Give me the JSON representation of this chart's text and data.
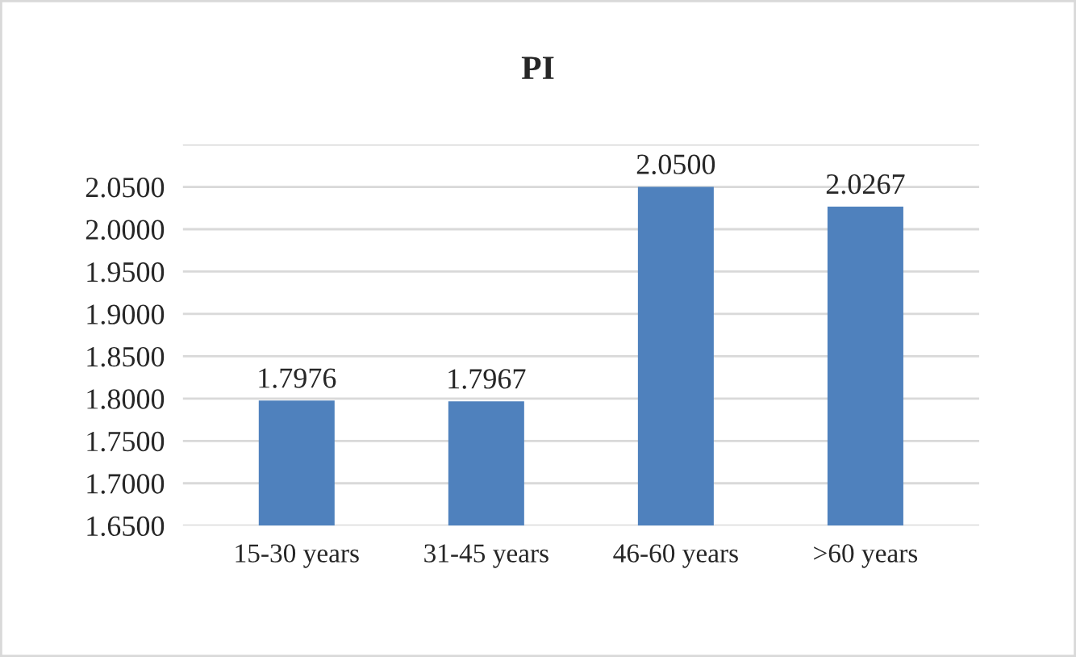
{
  "chart_data": {
    "type": "bar",
    "title": "PI",
    "categories": [
      "15-30 years",
      "31-45 years",
      "46-60 years",
      ">60 years"
    ],
    "values": [
      1.7976,
      1.7967,
      2.05,
      2.0267
    ],
    "value_labels": [
      "1.7976",
      "1.7967",
      "2.0500",
      "2.0267"
    ],
    "color": "#4f81bd",
    "ylim": [
      1.65,
      2.1
    ],
    "yticks": [
      {
        "value": 1.65,
        "label": "1.6500"
      },
      {
        "value": 1.7,
        "label": "1.7000"
      },
      {
        "value": 1.75,
        "label": "1.7500"
      },
      {
        "value": 1.8,
        "label": "1.8000"
      },
      {
        "value": 1.85,
        "label": "1.8500"
      },
      {
        "value": 1.9,
        "label": "1.9000"
      },
      {
        "value": 1.95,
        "label": "1.9500"
      },
      {
        "value": 2.0,
        "label": "2.0000"
      },
      {
        "value": 2.05,
        "label": "2.0500"
      },
      {
        "value": 2.1,
        "label": null
      }
    ],
    "grid": "y"
  }
}
